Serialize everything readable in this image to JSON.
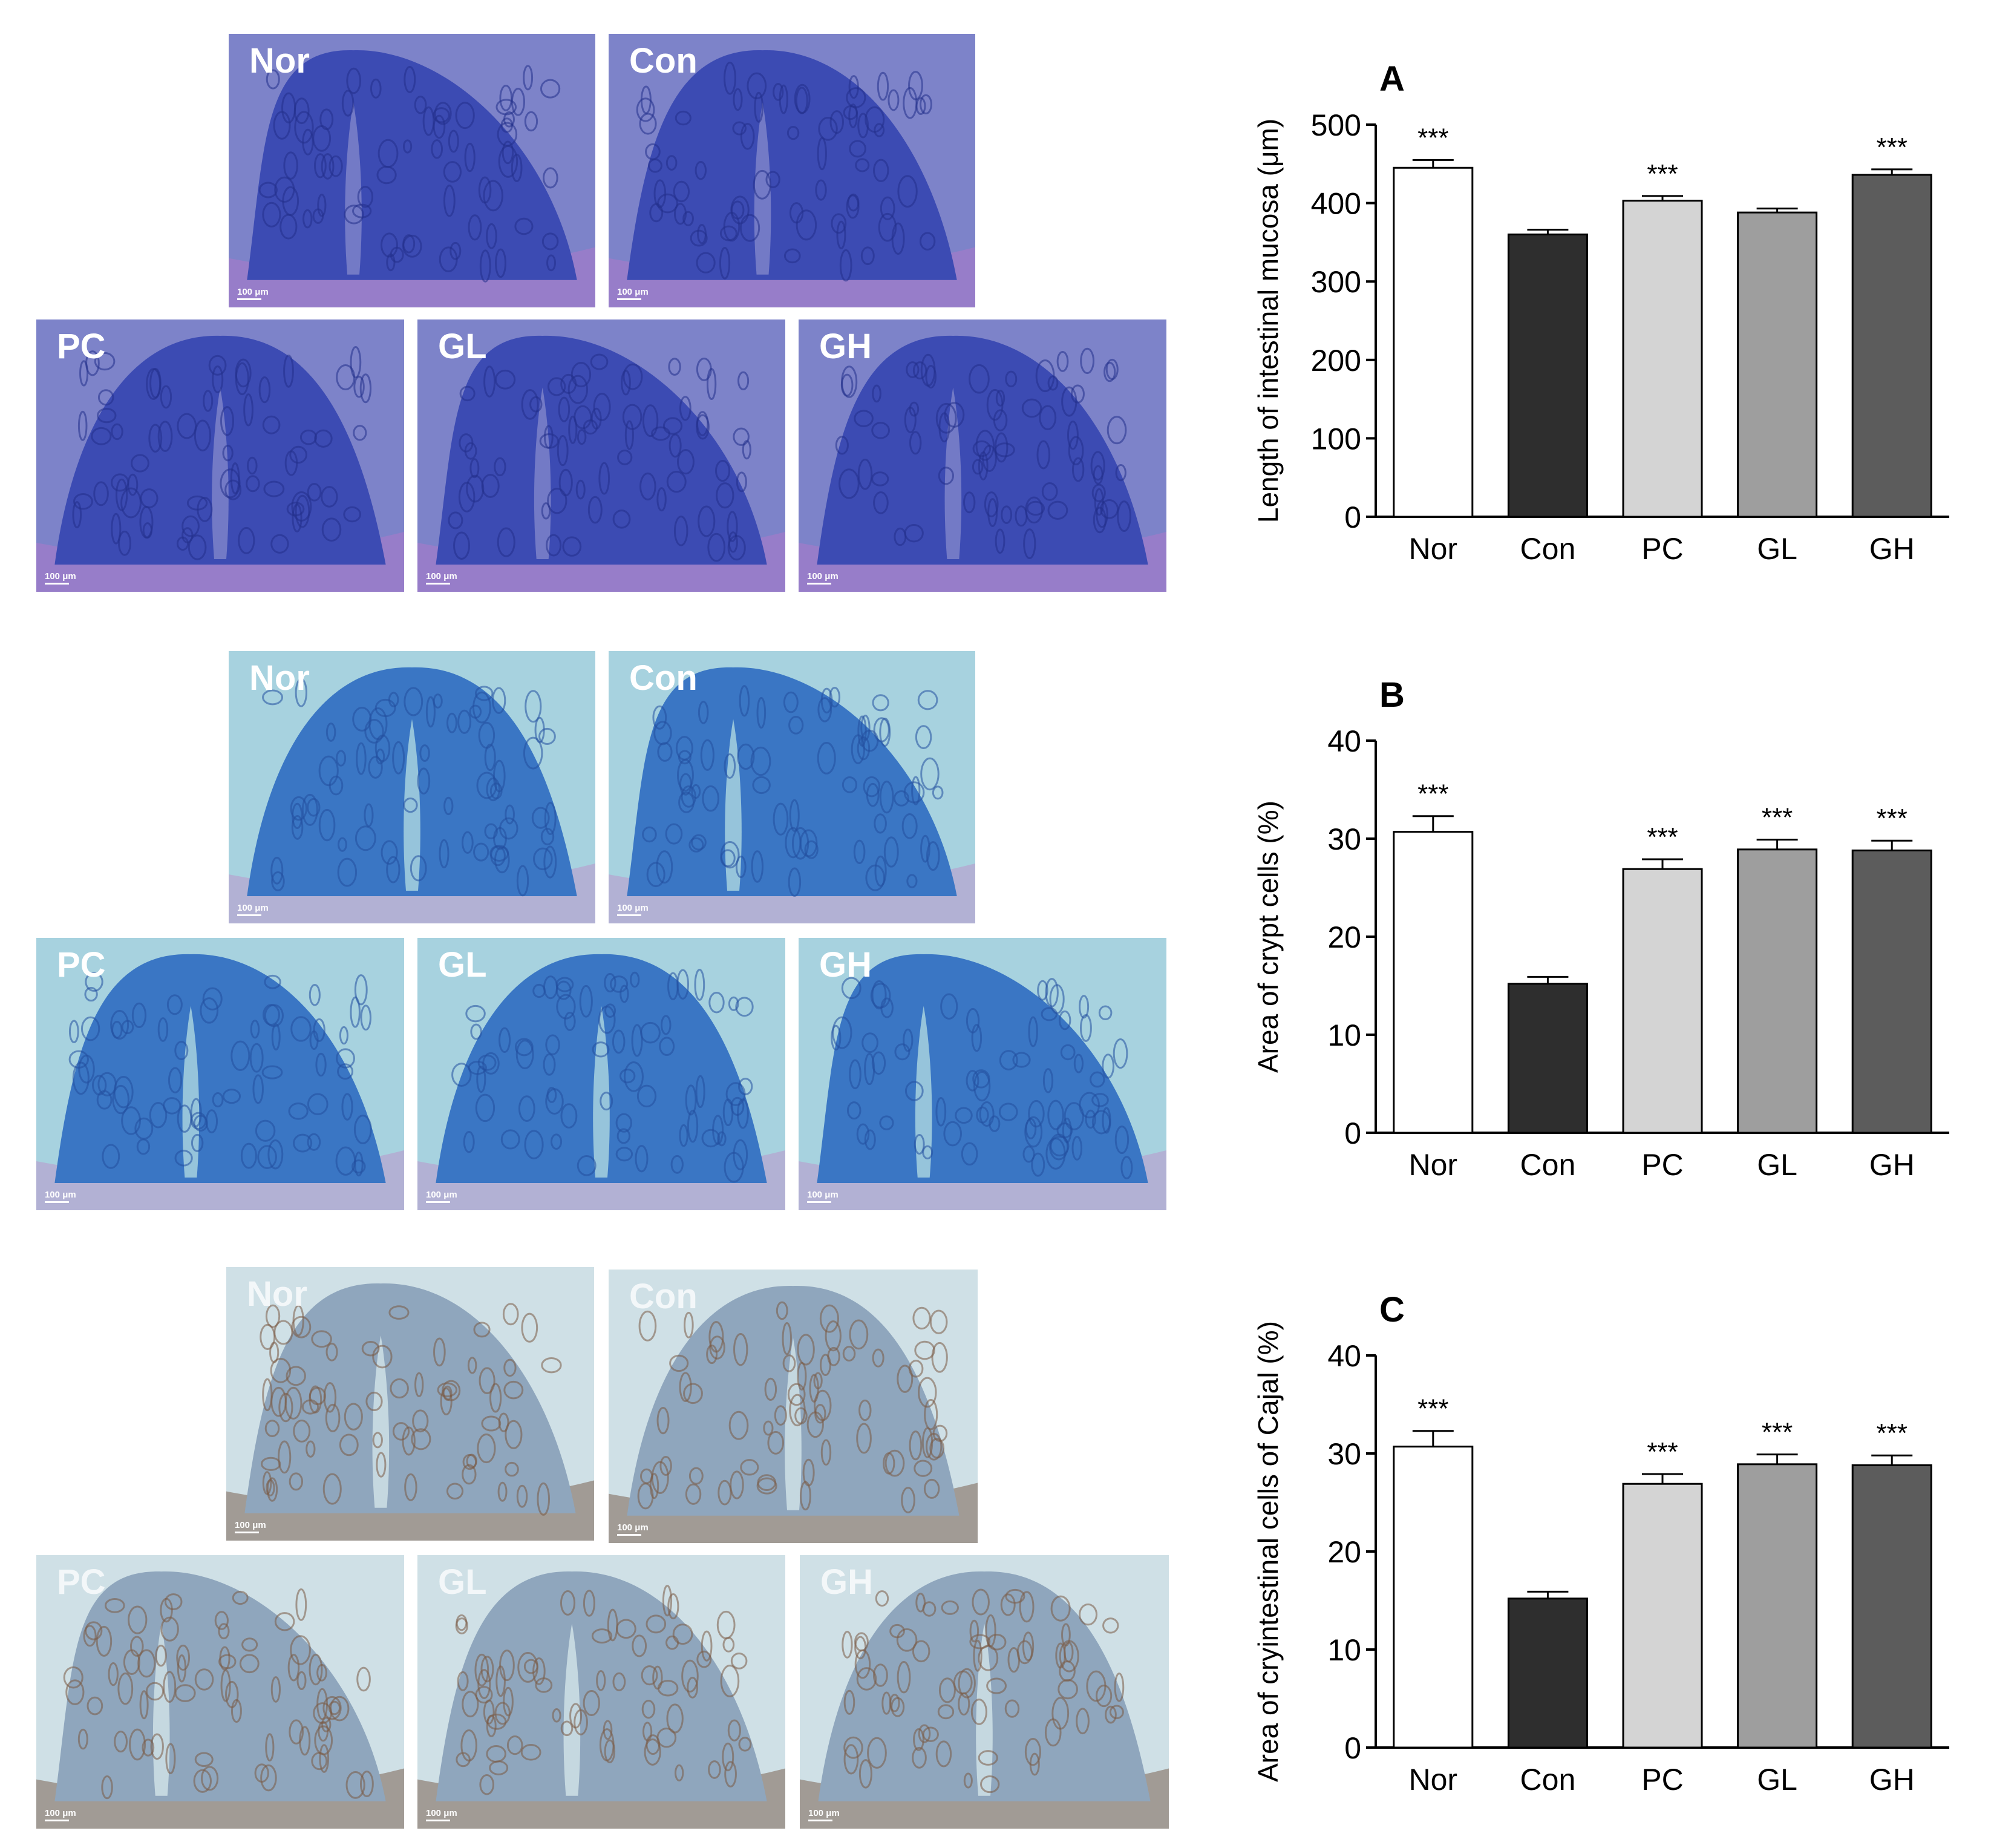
{
  "micrographs": [
    {
      "group": "row1",
      "theme": {
        "bg": "#7d83c9",
        "tissue": "#3c4bb3",
        "dark": "#23308a",
        "edge": "#a37bc9"
      },
      "scale_text": "100 μm",
      "panels": [
        {
          "label": "Nor"
        },
        {
          "label": "Con"
        },
        {
          "label": "PC"
        },
        {
          "label": "GL"
        },
        {
          "label": "GH"
        }
      ]
    },
    {
      "group": "row2",
      "theme": {
        "bg": "#a7d2df",
        "tissue": "#3a76c4",
        "dark": "#224f9e",
        "edge": "#b6a2cf"
      },
      "scale_text": "100 μm",
      "panels": [
        {
          "label": "Nor"
        },
        {
          "label": "Con"
        },
        {
          "label": "PC"
        },
        {
          "label": "GL"
        },
        {
          "label": "GH"
        }
      ]
    },
    {
      "group": "row3",
      "theme": {
        "bg": "#cfe0e6",
        "tissue": "#8fa6bd",
        "dark": "#7a5a43",
        "edge": "#8d7e72"
      },
      "scale_text": "100 μm",
      "panels": [
        {
          "label": "Nor"
        },
        {
          "label": "Con"
        },
        {
          "label": "PC"
        },
        {
          "label": "GL"
        },
        {
          "label": "GH"
        }
      ]
    }
  ],
  "chart_data": [
    {
      "type": "bar",
      "panel_letter": "A",
      "ylabel": "Length of intestinal mucosa (μm)",
      "categories": [
        "Nor",
        "Con",
        "PC",
        "GL",
        "GH"
      ],
      "values": [
        445,
        360,
        403,
        388,
        436
      ],
      "errors": [
        10,
        6,
        6,
        5,
        7
      ],
      "significance": [
        "***",
        "",
        "***",
        "",
        "***"
      ],
      "ylim": [
        0,
        500
      ],
      "yticks": [
        "0",
        "100",
        "200",
        "300",
        "400",
        "500"
      ],
      "colors": [
        "#ffffff",
        "#2e2e2e",
        "#d4d4d4",
        "#9e9e9e",
        "#5c5c5c"
      ]
    },
    {
      "type": "bar",
      "panel_letter": "B",
      "ylabel": "Area of crypt cells (%)",
      "categories": [
        "Nor",
        "Con",
        "PC",
        "GL",
        "GH"
      ],
      "values": [
        30.7,
        15.2,
        26.9,
        28.9,
        28.8
      ],
      "errors": [
        1.6,
        0.7,
        1.0,
        1.0,
        1.0
      ],
      "significance": [
        "***",
        "",
        "***",
        "***",
        "***"
      ],
      "ylim": [
        0,
        40
      ],
      "yticks": [
        "0",
        "10",
        "20",
        "30",
        "40"
      ],
      "colors": [
        "#ffffff",
        "#2e2e2e",
        "#d4d4d4",
        "#9e9e9e",
        "#5c5c5c"
      ]
    },
    {
      "type": "bar",
      "panel_letter": "C",
      "ylabel": "Area of cryintestinal cells of Cajal (%)",
      "categories": [
        "Nor",
        "Con",
        "PC",
        "GL",
        "GH"
      ],
      "values": [
        30.7,
        15.2,
        26.9,
        28.9,
        28.8
      ],
      "errors": [
        1.6,
        0.7,
        1.0,
        1.0,
        1.0
      ],
      "significance": [
        "***",
        "",
        "***",
        "***",
        "***"
      ],
      "ylim": [
        0,
        40
      ],
      "yticks": [
        "0",
        "10",
        "20",
        "30",
        "40"
      ],
      "colors": [
        "#ffffff",
        "#2e2e2e",
        "#d4d4d4",
        "#9e9e9e",
        "#5c5c5c"
      ]
    }
  ]
}
